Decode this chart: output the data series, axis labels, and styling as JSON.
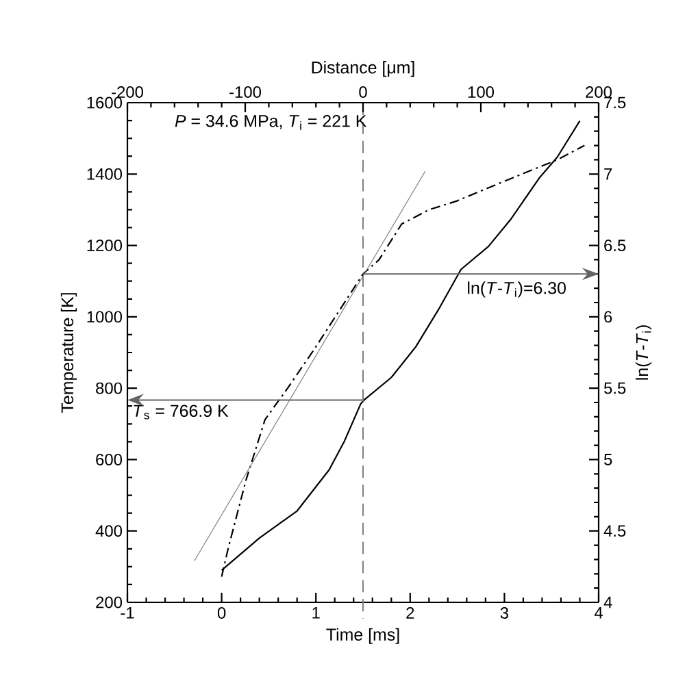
{
  "chart_data": {
    "type": "line",
    "xlabel": "Time [ms]",
    "ylabel": "Temperature [K]",
    "y2label": "ln(*T*-*T*$_{i}$)",
    "x2label": "Distance [μm]",
    "xlim": [
      -1,
      4
    ],
    "xticks": [
      -1,
      0,
      1,
      2,
      3,
      4
    ],
    "ylim": [
      200,
      1600
    ],
    "yticks": [
      200,
      400,
      600,
      800,
      1000,
      1200,
      1400,
      1600
    ],
    "y2lim": [
      4,
      7.5
    ],
    "y2ticks": [
      4,
      {
        "value": 4.5,
        "label": "4.5"
      },
      5,
      {
        "value": 5.5,
        "label": "5.5"
      },
      6,
      {
        "value": 6.5,
        "label": "6.5"
      },
      7,
      {
        "value": 7.5,
        "label": "7.5"
      }
    ],
    "x2lim": [
      -200,
      200
    ],
    "x2ticks": [
      -200,
      -100,
      0,
      100,
      200
    ],
    "series": [
      {
        "color": "#000000",
        "line_style": "solid",
        "x": [
          0,
          0.4,
          0.8,
          1.14,
          1.3,
          1.475,
          1.52,
          1.8,
          2.06,
          2.3,
          2.54,
          2.83,
          3.07,
          3.37,
          3.56,
          3.8
        ],
        "values": [
          290,
          380,
          456,
          571,
          650,
          756,
          769,
          830,
          916,
          1020,
          1133,
          1197,
          1274,
          1389,
          1447,
          1549
        ]
      },
      {
        "color": "#000000",
        "line_style": "dashdot",
        "axis": "y2",
        "x": [
          0,
          0.07,
          0.26,
          0.46,
          0.7,
          0.99,
          1.5,
          1.67,
          1.91,
          2.2,
          2.49,
          3.0,
          3.56,
          3.85
        ],
        "values": [
          4.18,
          4.38,
          4.86,
          5.28,
          5.5,
          5.78,
          6.3,
          6.4,
          6.65,
          6.75,
          6.81,
          6.95,
          7.1,
          7.2
        ]
      },
      {
        "color": "#808080",
        "line_style": "solid",
        "axis": "y2",
        "x": [
          -0.29,
          2.16
        ],
        "values": [
          4.29,
          7.02
        ]
      }
    ],
    "ref_lines": [
      {
        "axis": "x",
        "value": 1.5,
        "color": "#808080",
        "line_style": "dashed"
      },
      {
        "axis": "y",
        "value": 766.9,
        "color": "#646464"
      },
      {
        "axis": "y2",
        "value": 6.3,
        "color": "#646464"
      }
    ],
    "annotations": [
      "*P* = 34.6 MPa, *T*$_{i}$ = 221 K",
      "*T*$_{s}$ = 766.9 K",
      "ln(*T*-*T*$_{i}$)=6.30"
    ],
    "grid": false,
    "marker": "none"
  }
}
